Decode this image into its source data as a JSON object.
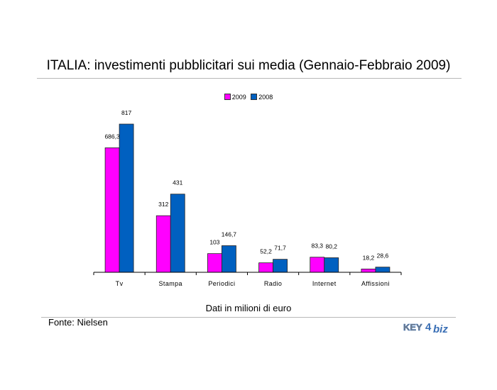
{
  "title": "ITALIA: investimenti pubblicitari sui media (Gennaio-Febbraio 2009)",
  "unit_note": "Dati in milioni di euro",
  "source": "Fonte: Nielsen",
  "logo": {
    "part1": "KEY",
    "digit": "4",
    "part2": "biz"
  },
  "colors": {
    "s2009": "#ff00ff",
    "s2008": "#0060c0",
    "logo_blue": "#3a6fb5",
    "logo_gray": "#7f7f7f"
  },
  "chart_data": {
    "type": "bar",
    "categories": [
      "Tv",
      "Stampa",
      "Periodici",
      "Radio",
      "Internet",
      "Affissioni"
    ],
    "series": [
      {
        "name": "2009",
        "values": [
          686.3,
          312,
          103,
          52.2,
          83.3,
          18.2
        ],
        "labels": [
          "686,3",
          "312",
          "103",
          "52,2",
          "83,3",
          "18,2"
        ]
      },
      {
        "name": "2008",
        "values": [
          817,
          431,
          146.7,
          71.7,
          80.2,
          28.6
        ],
        "labels": [
          "817",
          "431",
          "146,7",
          "71,7",
          "80,2",
          "28,6"
        ]
      }
    ],
    "title": "ITALIA: investimenti pubblicitari sui media (Gennaio-Febbraio 2009)",
    "xlabel": "Dati in milioni di euro",
    "ylabel": "",
    "ylim": [
      0,
      817
    ],
    "legend": "top-center",
    "grid": false
  }
}
